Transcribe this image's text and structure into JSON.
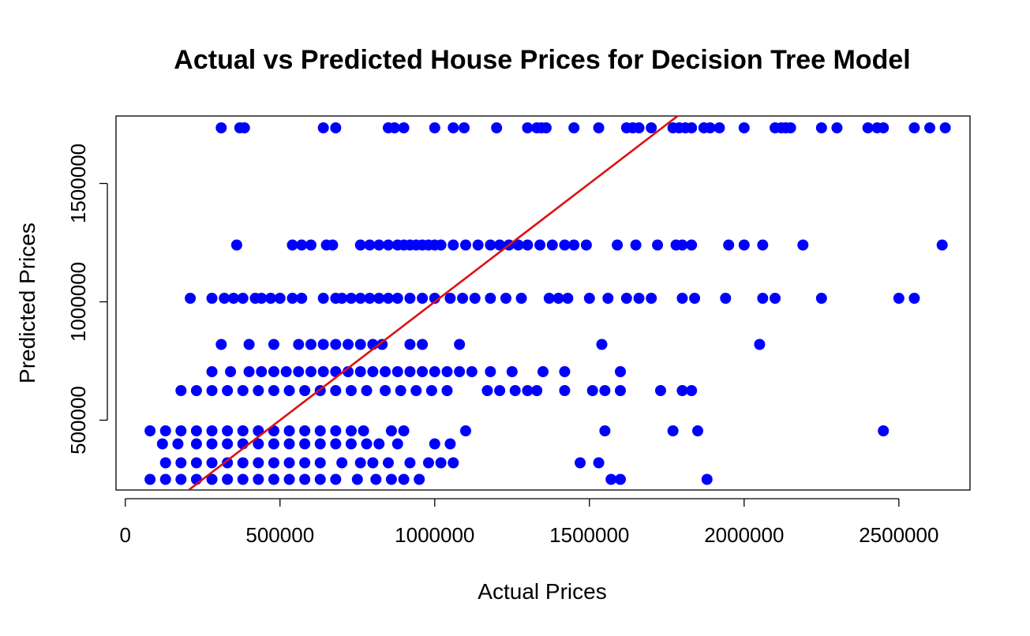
{
  "chart_data": {
    "type": "scatter",
    "title": "Actual vs Predicted House Prices for Decision Tree Model",
    "xlabel": "Actual Prices",
    "ylabel": "Predicted Prices",
    "xlim": [
      -30000,
      2730000
    ],
    "ylim": [
      205000,
      1785000
    ],
    "x_ticks": [
      0,
      500000,
      1000000,
      1500000,
      2000000,
      2500000
    ],
    "y_ticks": [
      500000,
      1000000,
      1500000
    ],
    "x_tick_labels": [
      "0",
      "500000",
      "1000000",
      "1500000",
      "2000000",
      "2500000"
    ],
    "y_tick_labels": [
      "500000",
      "1000000",
      "1500000"
    ],
    "point_color": "#0000ff",
    "line_color": "#dd1111",
    "series": [
      {
        "type": "scatter",
        "points": [
          [
            310000,
            1735000
          ],
          [
            370000,
            1735000
          ],
          [
            385000,
            1735000
          ],
          [
            640000,
            1735000
          ],
          [
            680000,
            1735000
          ],
          [
            850000,
            1735000
          ],
          [
            870000,
            1735000
          ],
          [
            900000,
            1735000
          ],
          [
            1000000,
            1735000
          ],
          [
            1060000,
            1735000
          ],
          [
            1095000,
            1735000
          ],
          [
            1200000,
            1735000
          ],
          [
            1300000,
            1735000
          ],
          [
            1330000,
            1735000
          ],
          [
            1345000,
            1735000
          ],
          [
            1360000,
            1735000
          ],
          [
            1450000,
            1735000
          ],
          [
            1530000,
            1735000
          ],
          [
            1620000,
            1735000
          ],
          [
            1640000,
            1735000
          ],
          [
            1660000,
            1735000
          ],
          [
            1700000,
            1735000
          ],
          [
            1770000,
            1735000
          ],
          [
            1790000,
            1735000
          ],
          [
            1810000,
            1735000
          ],
          [
            1830000,
            1735000
          ],
          [
            1870000,
            1735000
          ],
          [
            1890000,
            1735000
          ],
          [
            1920000,
            1735000
          ],
          [
            2000000,
            1735000
          ],
          [
            2100000,
            1735000
          ],
          [
            2120000,
            1735000
          ],
          [
            2135000,
            1735000
          ],
          [
            2150000,
            1735000
          ],
          [
            2250000,
            1735000
          ],
          [
            2300000,
            1735000
          ],
          [
            2400000,
            1735000
          ],
          [
            2430000,
            1735000
          ],
          [
            2450000,
            1735000
          ],
          [
            2550000,
            1735000
          ],
          [
            2600000,
            1735000
          ],
          [
            2650000,
            1735000
          ],
          [
            360000,
            1240000
          ],
          [
            540000,
            1240000
          ],
          [
            570000,
            1240000
          ],
          [
            600000,
            1240000
          ],
          [
            650000,
            1240000
          ],
          [
            670000,
            1240000
          ],
          [
            760000,
            1240000
          ],
          [
            790000,
            1240000
          ],
          [
            820000,
            1240000
          ],
          [
            850000,
            1240000
          ],
          [
            880000,
            1240000
          ],
          [
            900000,
            1240000
          ],
          [
            920000,
            1240000
          ],
          [
            940000,
            1240000
          ],
          [
            960000,
            1240000
          ],
          [
            980000,
            1240000
          ],
          [
            1000000,
            1240000
          ],
          [
            1020000,
            1240000
          ],
          [
            1060000,
            1240000
          ],
          [
            1100000,
            1240000
          ],
          [
            1140000,
            1240000
          ],
          [
            1180000,
            1240000
          ],
          [
            1210000,
            1240000
          ],
          [
            1240000,
            1240000
          ],
          [
            1270000,
            1240000
          ],
          [
            1300000,
            1240000
          ],
          [
            1340000,
            1240000
          ],
          [
            1380000,
            1240000
          ],
          [
            1420000,
            1240000
          ],
          [
            1450000,
            1240000
          ],
          [
            1490000,
            1240000
          ],
          [
            1590000,
            1240000
          ],
          [
            1650000,
            1240000
          ],
          [
            1720000,
            1240000
          ],
          [
            1780000,
            1240000
          ],
          [
            1800000,
            1240000
          ],
          [
            1830000,
            1240000
          ],
          [
            1950000,
            1240000
          ],
          [
            2000000,
            1240000
          ],
          [
            2060000,
            1240000
          ],
          [
            2190000,
            1240000
          ],
          [
            2640000,
            1240000
          ],
          [
            210000,
            1015000
          ],
          [
            280000,
            1015000
          ],
          [
            320000,
            1015000
          ],
          [
            350000,
            1015000
          ],
          [
            380000,
            1015000
          ],
          [
            420000,
            1015000
          ],
          [
            440000,
            1015000
          ],
          [
            470000,
            1015000
          ],
          [
            500000,
            1015000
          ],
          [
            540000,
            1015000
          ],
          [
            570000,
            1015000
          ],
          [
            640000,
            1015000
          ],
          [
            680000,
            1015000
          ],
          [
            700000,
            1015000
          ],
          [
            730000,
            1015000
          ],
          [
            760000,
            1015000
          ],
          [
            790000,
            1015000
          ],
          [
            820000,
            1015000
          ],
          [
            850000,
            1015000
          ],
          [
            880000,
            1015000
          ],
          [
            920000,
            1015000
          ],
          [
            960000,
            1015000
          ],
          [
            1000000,
            1015000
          ],
          [
            1050000,
            1015000
          ],
          [
            1090000,
            1015000
          ],
          [
            1130000,
            1015000
          ],
          [
            1180000,
            1015000
          ],
          [
            1230000,
            1015000
          ],
          [
            1280000,
            1015000
          ],
          [
            1370000,
            1015000
          ],
          [
            1400000,
            1015000
          ],
          [
            1430000,
            1015000
          ],
          [
            1500000,
            1015000
          ],
          [
            1560000,
            1015000
          ],
          [
            1620000,
            1015000
          ],
          [
            1660000,
            1015000
          ],
          [
            1700000,
            1015000
          ],
          [
            1800000,
            1015000
          ],
          [
            1840000,
            1015000
          ],
          [
            1940000,
            1015000
          ],
          [
            2060000,
            1015000
          ],
          [
            2100000,
            1015000
          ],
          [
            2250000,
            1015000
          ],
          [
            2500000,
            1015000
          ],
          [
            2550000,
            1015000
          ],
          [
            310000,
            820000
          ],
          [
            400000,
            820000
          ],
          [
            480000,
            820000
          ],
          [
            560000,
            820000
          ],
          [
            600000,
            820000
          ],
          [
            640000,
            820000
          ],
          [
            680000,
            820000
          ],
          [
            720000,
            820000
          ],
          [
            760000,
            820000
          ],
          [
            800000,
            820000
          ],
          [
            830000,
            820000
          ],
          [
            920000,
            820000
          ],
          [
            960000,
            820000
          ],
          [
            1080000,
            820000
          ],
          [
            1540000,
            820000
          ],
          [
            2050000,
            820000
          ],
          [
            280000,
            705000
          ],
          [
            340000,
            705000
          ],
          [
            400000,
            705000
          ],
          [
            440000,
            705000
          ],
          [
            480000,
            705000
          ],
          [
            520000,
            705000
          ],
          [
            560000,
            705000
          ],
          [
            600000,
            705000
          ],
          [
            640000,
            705000
          ],
          [
            680000,
            705000
          ],
          [
            720000,
            705000
          ],
          [
            760000,
            705000
          ],
          [
            800000,
            705000
          ],
          [
            840000,
            705000
          ],
          [
            880000,
            705000
          ],
          [
            920000,
            705000
          ],
          [
            960000,
            705000
          ],
          [
            1000000,
            705000
          ],
          [
            1040000,
            705000
          ],
          [
            1080000,
            705000
          ],
          [
            1120000,
            705000
          ],
          [
            1180000,
            705000
          ],
          [
            1250000,
            705000
          ],
          [
            1350000,
            705000
          ],
          [
            1420000,
            705000
          ],
          [
            1600000,
            705000
          ],
          [
            180000,
            625000
          ],
          [
            230000,
            625000
          ],
          [
            280000,
            625000
          ],
          [
            330000,
            625000
          ],
          [
            380000,
            625000
          ],
          [
            430000,
            625000
          ],
          [
            480000,
            625000
          ],
          [
            530000,
            625000
          ],
          [
            580000,
            625000
          ],
          [
            630000,
            625000
          ],
          [
            680000,
            625000
          ],
          [
            730000,
            625000
          ],
          [
            780000,
            625000
          ],
          [
            840000,
            625000
          ],
          [
            890000,
            625000
          ],
          [
            940000,
            625000
          ],
          [
            990000,
            625000
          ],
          [
            1040000,
            625000
          ],
          [
            1170000,
            625000
          ],
          [
            1210000,
            625000
          ],
          [
            1260000,
            625000
          ],
          [
            1300000,
            625000
          ],
          [
            1330000,
            625000
          ],
          [
            1420000,
            625000
          ],
          [
            1510000,
            625000
          ],
          [
            1550000,
            625000
          ],
          [
            1600000,
            625000
          ],
          [
            1730000,
            625000
          ],
          [
            1800000,
            625000
          ],
          [
            1830000,
            625000
          ],
          [
            80000,
            455000
          ],
          [
            130000,
            455000
          ],
          [
            180000,
            455000
          ],
          [
            230000,
            455000
          ],
          [
            280000,
            455000
          ],
          [
            330000,
            455000
          ],
          [
            380000,
            455000
          ],
          [
            430000,
            455000
          ],
          [
            480000,
            455000
          ],
          [
            530000,
            455000
          ],
          [
            580000,
            455000
          ],
          [
            630000,
            455000
          ],
          [
            680000,
            455000
          ],
          [
            730000,
            455000
          ],
          [
            770000,
            455000
          ],
          [
            860000,
            455000
          ],
          [
            900000,
            455000
          ],
          [
            1100000,
            455000
          ],
          [
            1550000,
            455000
          ],
          [
            1770000,
            455000
          ],
          [
            1850000,
            455000
          ],
          [
            2450000,
            455000
          ],
          [
            120000,
            400000
          ],
          [
            170000,
            400000
          ],
          [
            230000,
            400000
          ],
          [
            280000,
            400000
          ],
          [
            330000,
            400000
          ],
          [
            380000,
            400000
          ],
          [
            430000,
            400000
          ],
          [
            480000,
            400000
          ],
          [
            530000,
            400000
          ],
          [
            580000,
            400000
          ],
          [
            630000,
            400000
          ],
          [
            680000,
            400000
          ],
          [
            730000,
            400000
          ],
          [
            780000,
            400000
          ],
          [
            820000,
            400000
          ],
          [
            880000,
            400000
          ],
          [
            1000000,
            400000
          ],
          [
            1050000,
            400000
          ],
          [
            130000,
            320000
          ],
          [
            180000,
            320000
          ],
          [
            230000,
            320000
          ],
          [
            280000,
            320000
          ],
          [
            330000,
            320000
          ],
          [
            380000,
            320000
          ],
          [
            430000,
            320000
          ],
          [
            480000,
            320000
          ],
          [
            530000,
            320000
          ],
          [
            580000,
            320000
          ],
          [
            630000,
            320000
          ],
          [
            700000,
            320000
          ],
          [
            760000,
            320000
          ],
          [
            800000,
            320000
          ],
          [
            850000,
            320000
          ],
          [
            920000,
            320000
          ],
          [
            980000,
            320000
          ],
          [
            1020000,
            320000
          ],
          [
            1060000,
            320000
          ],
          [
            1470000,
            320000
          ],
          [
            1530000,
            320000
          ],
          [
            80000,
            250000
          ],
          [
            130000,
            250000
          ],
          [
            180000,
            250000
          ],
          [
            230000,
            250000
          ],
          [
            280000,
            250000
          ],
          [
            330000,
            250000
          ],
          [
            380000,
            250000
          ],
          [
            430000,
            250000
          ],
          [
            480000,
            250000
          ],
          [
            530000,
            250000
          ],
          [
            580000,
            250000
          ],
          [
            630000,
            250000
          ],
          [
            680000,
            250000
          ],
          [
            750000,
            250000
          ],
          [
            810000,
            250000
          ],
          [
            860000,
            250000
          ],
          [
            900000,
            250000
          ],
          [
            950000,
            250000
          ],
          [
            1570000,
            250000
          ],
          [
            1600000,
            250000
          ],
          [
            1880000,
            250000
          ]
        ]
      },
      {
        "type": "line",
        "name": "",
        "values": [
          [
            190000,
            190000
          ],
          [
            1790000,
            1790000
          ]
        ]
      }
    ]
  }
}
